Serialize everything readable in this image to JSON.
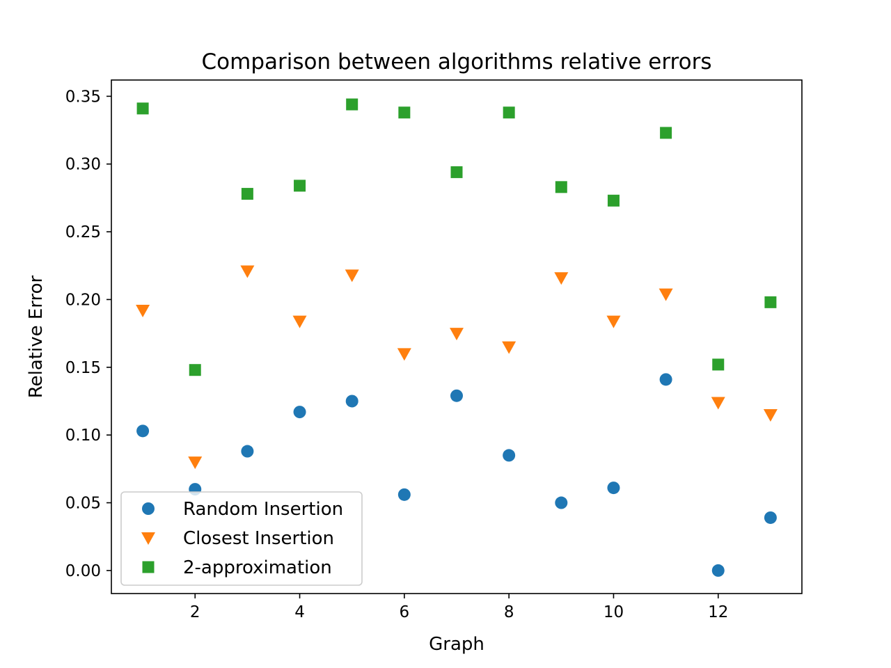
{
  "chart_data": {
    "type": "scatter",
    "title": "Comparison between algorithms relative errors",
    "xlabel": "Graph",
    "ylabel": "Relative Error",
    "xlim": [
      0.4,
      13.6
    ],
    "ylim": [
      -0.017,
      0.362
    ],
    "xticks": [
      "2",
      "4",
      "6",
      "8",
      "10",
      "12"
    ],
    "xtick_values": [
      2,
      4,
      6,
      8,
      10,
      12
    ],
    "yticks": [
      "0.00",
      "0.05",
      "0.10",
      "0.15",
      "0.20",
      "0.25",
      "0.30",
      "0.35"
    ],
    "ytick_values": [
      0,
      0.05,
      0.1,
      0.15,
      0.2,
      0.25,
      0.3,
      0.35
    ],
    "grid": false,
    "legend_position": "lower-left",
    "x": [
      1,
      2,
      3,
      4,
      5,
      6,
      7,
      8,
      9,
      10,
      11,
      12,
      13
    ],
    "series": [
      {
        "name": "Random Insertion",
        "marker": "circle",
        "color": "#1f77b4",
        "values": [
          0.103,
          0.06,
          0.088,
          0.117,
          0.125,
          0.056,
          0.129,
          0.085,
          0.05,
          0.061,
          0.141,
          0.0,
          0.039
        ]
      },
      {
        "name": "Closest Insertion",
        "marker": "triangle-down",
        "color": "#ff7f0e",
        "values": [
          0.192,
          0.08,
          0.221,
          0.184,
          0.218,
          0.16,
          0.175,
          0.165,
          0.216,
          0.184,
          0.204,
          0.124,
          0.115
        ]
      },
      {
        "name": "2-approximation",
        "marker": "square",
        "color": "#2ca02c",
        "values": [
          0.341,
          0.148,
          0.278,
          0.284,
          0.344,
          0.338,
          0.294,
          0.338,
          0.283,
          0.273,
          0.323,
          0.152,
          0.198
        ]
      }
    ]
  }
}
